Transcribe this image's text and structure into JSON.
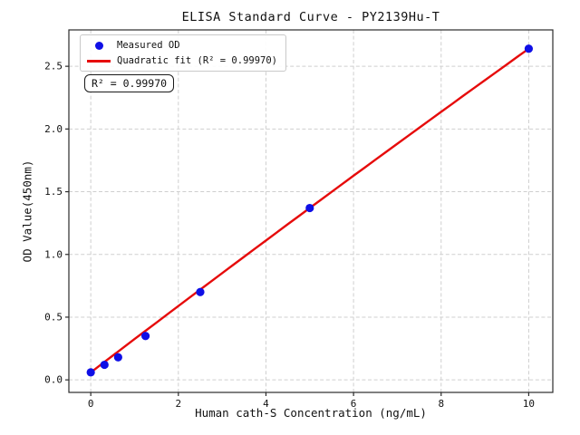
{
  "figure": {
    "title": "ELISA Standard Curve - PY2139Hu-T"
  },
  "legend": {
    "measured_label": "Measured OD",
    "fit_label": "Quadratic fit (R² = 0.99970)"
  },
  "annotation": {
    "r_squared": "R² = 0.99970"
  },
  "chart_data": {
    "type": "scatter",
    "title": "ELISA Standard Curve - PY2139Hu-T",
    "xlabel": "Human cath-S Concentration (ng/mL)",
    "ylabel": "OD Value(450nm)",
    "series": [
      {
        "name": "Measured OD",
        "type": "scatter",
        "color": "#0f0fe6",
        "x": [
          0,
          0.313,
          0.625,
          1.25,
          2.5,
          5,
          10
        ],
        "y": [
          0.06,
          0.12,
          0.18,
          0.35,
          0.7,
          1.37,
          2.64
        ]
      },
      {
        "name": "Quadratic fit",
        "type": "line",
        "color": "#e60b0b",
        "r_squared": "0.99970",
        "fit_coeffs": [
          0.06,
          0.266,
          -0.0008
        ],
        "x_range": [
          0,
          10
        ]
      }
    ],
    "xticks": [
      0,
      2,
      4,
      6,
      8,
      10
    ],
    "yticks": [
      0,
      0.5,
      1,
      1.5,
      2,
      2.5
    ],
    "xlim": [
      -0.5,
      10.55
    ],
    "ylim": [
      -0.1,
      2.79
    ],
    "grid": true,
    "grid_style": "dashed",
    "legend_position": "upper left",
    "colors": {
      "marker_blue": "#0f0fe6",
      "fit_red": "#e60b0b",
      "grid": "#cfcfcf",
      "spine": "#2b2b2b"
    }
  }
}
